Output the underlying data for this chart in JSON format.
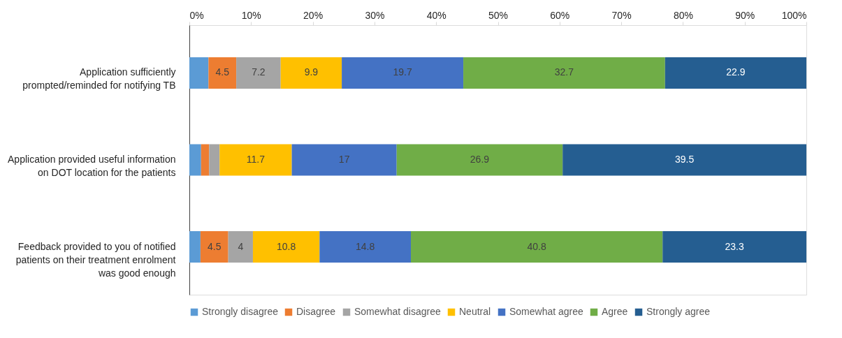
{
  "chart_data": {
    "type": "bar",
    "orientation": "horizontal",
    "stacked": true,
    "categories": [
      "Application sufficiently prompted/reminded for notifying TB",
      "Application provided useful information on DOT location for the patients",
      "Feedback provided to you of notified patients on their treatment enrolment was good enough"
    ],
    "series": [
      {
        "name": "Strongly disagree",
        "color": "#5b9bd5",
        "values": [
          3.1,
          1.9,
          1.8
        ],
        "value_labels": [
          null,
          null,
          null
        ]
      },
      {
        "name": "Disagree",
        "color": "#ed7d31",
        "values": [
          4.5,
          1.3,
          4.5
        ],
        "value_labels": [
          "4.5",
          null,
          "4.5"
        ]
      },
      {
        "name": "Somewhat disagree",
        "color": "#a5a5a5",
        "values": [
          7.2,
          1.7,
          4
        ],
        "value_labels": [
          "7.2",
          null,
          "4"
        ]
      },
      {
        "name": "Neutral",
        "color": "#ffc000",
        "values": [
          9.9,
          11.7,
          10.8
        ],
        "value_labels": [
          "9.9",
          "11.7",
          "10.8"
        ]
      },
      {
        "name": "Somewhat agree",
        "color": "#4472c4",
        "values": [
          19.7,
          17,
          14.8
        ],
        "value_labels": [
          "19.7",
          "17",
          "14.8"
        ]
      },
      {
        "name": "Agree",
        "color": "#70ad47",
        "values": [
          32.7,
          26.9,
          40.8
        ],
        "value_labels": [
          "32.7",
          "26.9",
          "40.8"
        ]
      },
      {
        "name": "Strongly agree",
        "color": "#255e91",
        "values": [
          22.9,
          39.5,
          23.3
        ],
        "value_labels": [
          "22.9",
          "39.5",
          "23.3"
        ]
      }
    ],
    "xlim": [
      0,
      100
    ],
    "xticks": [
      {
        "value": 0,
        "label": "0%"
      },
      {
        "value": 10,
        "label": "10%"
      },
      {
        "value": 20,
        "label": "20%"
      },
      {
        "value": 30,
        "label": "30%"
      },
      {
        "value": 40,
        "label": "40%"
      },
      {
        "value": 50,
        "label": "50%"
      },
      {
        "value": 60,
        "label": "60%"
      },
      {
        "value": 70,
        "label": "70%"
      },
      {
        "value": 80,
        "label": "80%"
      },
      {
        "value": 90,
        "label": "90%"
      },
      {
        "value": 100,
        "label": "100%"
      }
    ],
    "grid": false,
    "legend": "bottom"
  }
}
